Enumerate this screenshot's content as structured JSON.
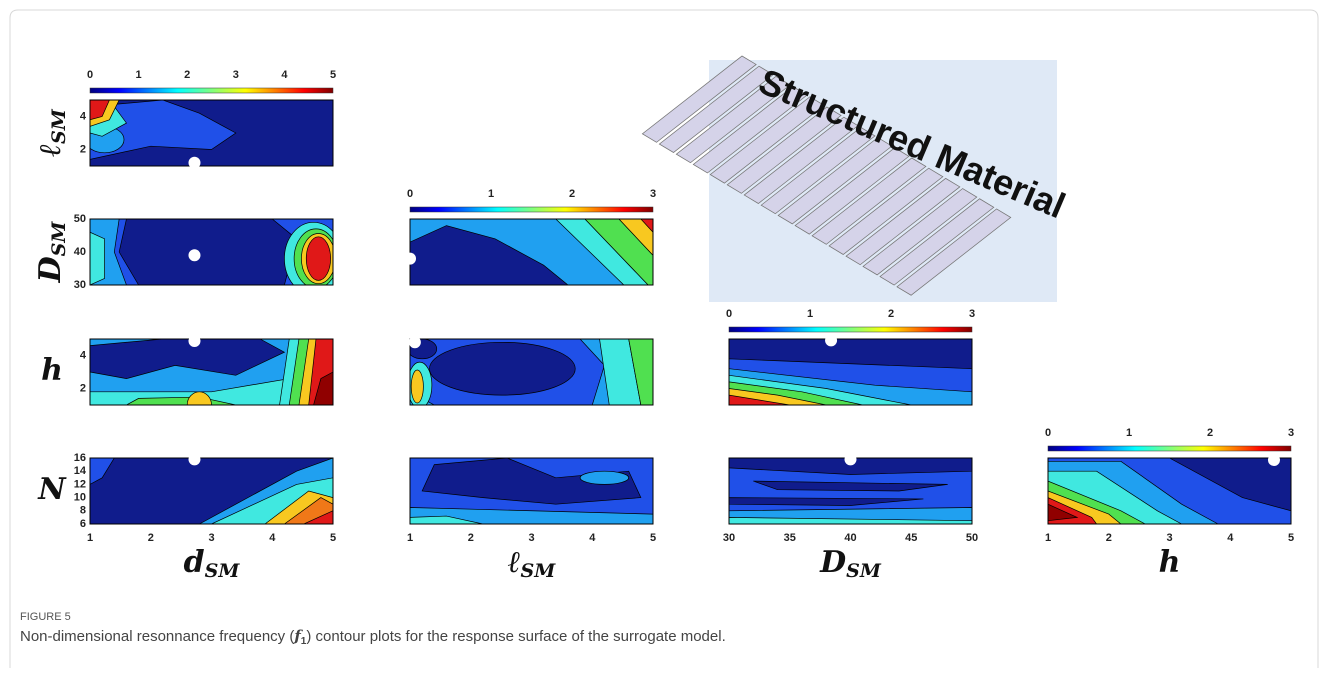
{
  "figure": {
    "colorbars": [
      {
        "ticks": [
          0,
          1,
          2,
          3,
          4,
          5
        ]
      },
      {
        "ticks": [
          0,
          1,
          2,
          3
        ]
      },
      {
        "ticks": [
          0,
          1,
          2,
          3
        ]
      },
      {
        "ticks": [
          0,
          1,
          2,
          3
        ]
      }
    ],
    "rows": [
      {
        "label": {
          "symbol": "ℓ",
          "subscript": "SM"
        },
        "ticks": [
          4,
          2
        ]
      },
      {
        "label": {
          "symbol": "D",
          "subscript": "SM"
        },
        "ticks": [
          50,
          40,
          30
        ]
      },
      {
        "label": {
          "symbol": "h"
        },
        "ticks": [
          4,
          2
        ]
      },
      {
        "label": {
          "symbol": "N"
        },
        "ticks": [
          16,
          14,
          12,
          10,
          8,
          6
        ]
      }
    ],
    "columns": [
      {
        "label": {
          "symbol": "d",
          "subscript": "SM"
        },
        "ticks": [
          1,
          2,
          3,
          4,
          5
        ]
      },
      {
        "label": {
          "symbol": "ℓ",
          "subscript": "SM"
        },
        "ticks": [
          1,
          2,
          3,
          4,
          5
        ]
      },
      {
        "label": {
          "symbol": "D",
          "subscript": "SM"
        },
        "ticks": [
          30,
          35,
          40,
          45,
          50
        ]
      },
      {
        "label": {
          "symbol": "h"
        },
        "ticks": [
          1,
          2,
          3,
          4,
          5
        ]
      }
    ],
    "inset_label": "Structured Material"
  },
  "caption": {
    "figure_label": "FIGURE 5",
    "text_before": "Non-dimensional resonnance frequency (",
    "symbol": "f",
    "subscript": "1",
    "text_after": ") contour plots for the response surface of the surrogate model."
  }
}
